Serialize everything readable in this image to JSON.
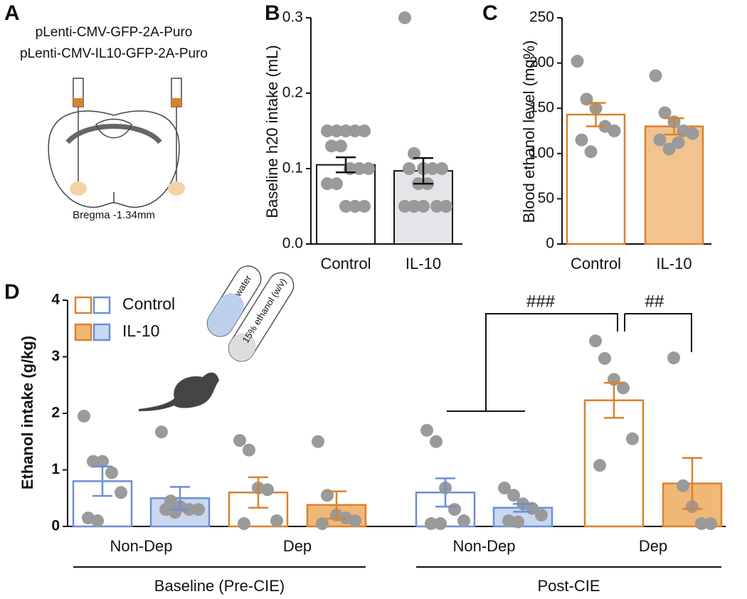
{
  "panel_a": {
    "label": "A",
    "lines": [
      "pLenti-CMV-GFP-2A-Puro",
      "pLenti-CMV-IL10-GFP-2A-Puro"
    ],
    "caption": "Bregma -1.34mm"
  },
  "chart_data": [
    {
      "type": "bar",
      "label": "B",
      "y_label": "Baseline h20 intake (mL)",
      "categories": [
        "Control",
        "IL-10"
      ],
      "values": [
        0.105,
        0.097
      ],
      "errors": [
        0.01,
        0.017
      ],
      "points": [
        [
          0.15,
          0.15,
          0.15,
          0.15,
          0.15,
          0.13,
          0.13,
          0.1,
          0.1,
          0.1,
          0.08,
          0.08,
          0.05,
          0.05,
          0.05
        ],
        [
          0.3,
          0.12,
          0.1,
          0.1,
          0.1,
          0.1,
          0.08,
          0.08,
          0.05,
          0.05,
          0.05,
          0.05,
          0.05
        ]
      ],
      "edge_color": "#111111",
      "fill_colors": [
        "#ffffff",
        "#e4e5e8"
      ],
      "point_color": "#9a9a9a",
      "ylim": [
        0,
        0.3
      ],
      "yticks": [
        {
          "value": 0,
          "label": "0.0"
        },
        0.1,
        0.2,
        0.3
      ]
    },
    {
      "type": "bar",
      "label": "C",
      "y_label": "Blood ethanol level (mg%)",
      "categories": [
        "Control",
        "IL-10"
      ],
      "values": [
        143,
        130
      ],
      "errors": [
        13,
        9
      ],
      "points": [
        [
          202,
          160,
          150,
          130,
          125,
          115,
          102
        ],
        [
          186,
          145,
          135,
          125,
          122,
          115,
          105,
          112
        ]
      ],
      "edge_color": "#d9822b",
      "fill_colors": [
        "#ffffff",
        "#f2c28f"
      ],
      "point_color": "#9a9a9a",
      "ylim": [
        0,
        250
      ],
      "yticks": [
        0,
        50,
        100,
        150,
        200,
        250
      ]
    },
    {
      "type": "grouped_bar",
      "label": "D",
      "y_label": "Ethanol intake (g/kg)",
      "categories": [
        "Non-Dep",
        "Dep",
        "Non-Dep",
        "Dep"
      ],
      "groups": [
        "Baseline (Pre-CIE)",
        "Post-CIE"
      ],
      "edge_colors": [
        "#6b8fd6",
        "#d9822b",
        "#6b8fd6",
        "#d9822b"
      ],
      "fill_colors": [
        "#c9d8f0",
        "#f0b877",
        "#c9d8f0",
        "#f0b877"
      ],
      "point_color": "#9a9a9a",
      "series": [
        {
          "name": "Control",
          "filled": false,
          "values": [
            0.8,
            0.6,
            0.6,
            2.23
          ],
          "errors": [
            0.26,
            0.27,
            0.25,
            0.31
          ],
          "points": [
            [
              1.95,
              1.15,
              1.15,
              0.95,
              0.6,
              0.15,
              0.1
            ],
            [
              1.52,
              1.35,
              0.68,
              0.65,
              0.1,
              0.05
            ],
            [
              1.7,
              1.5,
              0.68,
              0.3,
              0.1,
              0.05,
              0.05
            ],
            [
              3.28,
              2.97,
              2.6,
              2.45,
              1.55,
              1.08
            ]
          ]
        },
        {
          "name": "IL-10",
          "filled": true,
          "values": [
            0.5,
            0.38,
            0.33,
            0.76
          ],
          "errors": [
            0.2,
            0.24,
            0.07,
            0.45
          ],
          "points": [
            [
              1.67,
              0.45,
              0.35,
              0.3,
              0.3,
              0.3,
              0.25
            ],
            [
              1.5,
              0.55,
              0.2,
              0.15,
              0.1,
              0.05
            ],
            [
              0.68,
              0.55,
              0.4,
              0.32,
              0.2,
              0.1,
              0.08
            ],
            [
              2.98,
              0.72,
              0.35,
              0.05,
              0.05
            ]
          ]
        }
      ],
      "annotations": [
        "###",
        "##"
      ],
      "tube_labels": [
        "water",
        "15% ethanol (w/v)"
      ],
      "ylim": [
        0,
        4
      ],
      "yticks": [
        0,
        1,
        2,
        3,
        4
      ]
    }
  ]
}
